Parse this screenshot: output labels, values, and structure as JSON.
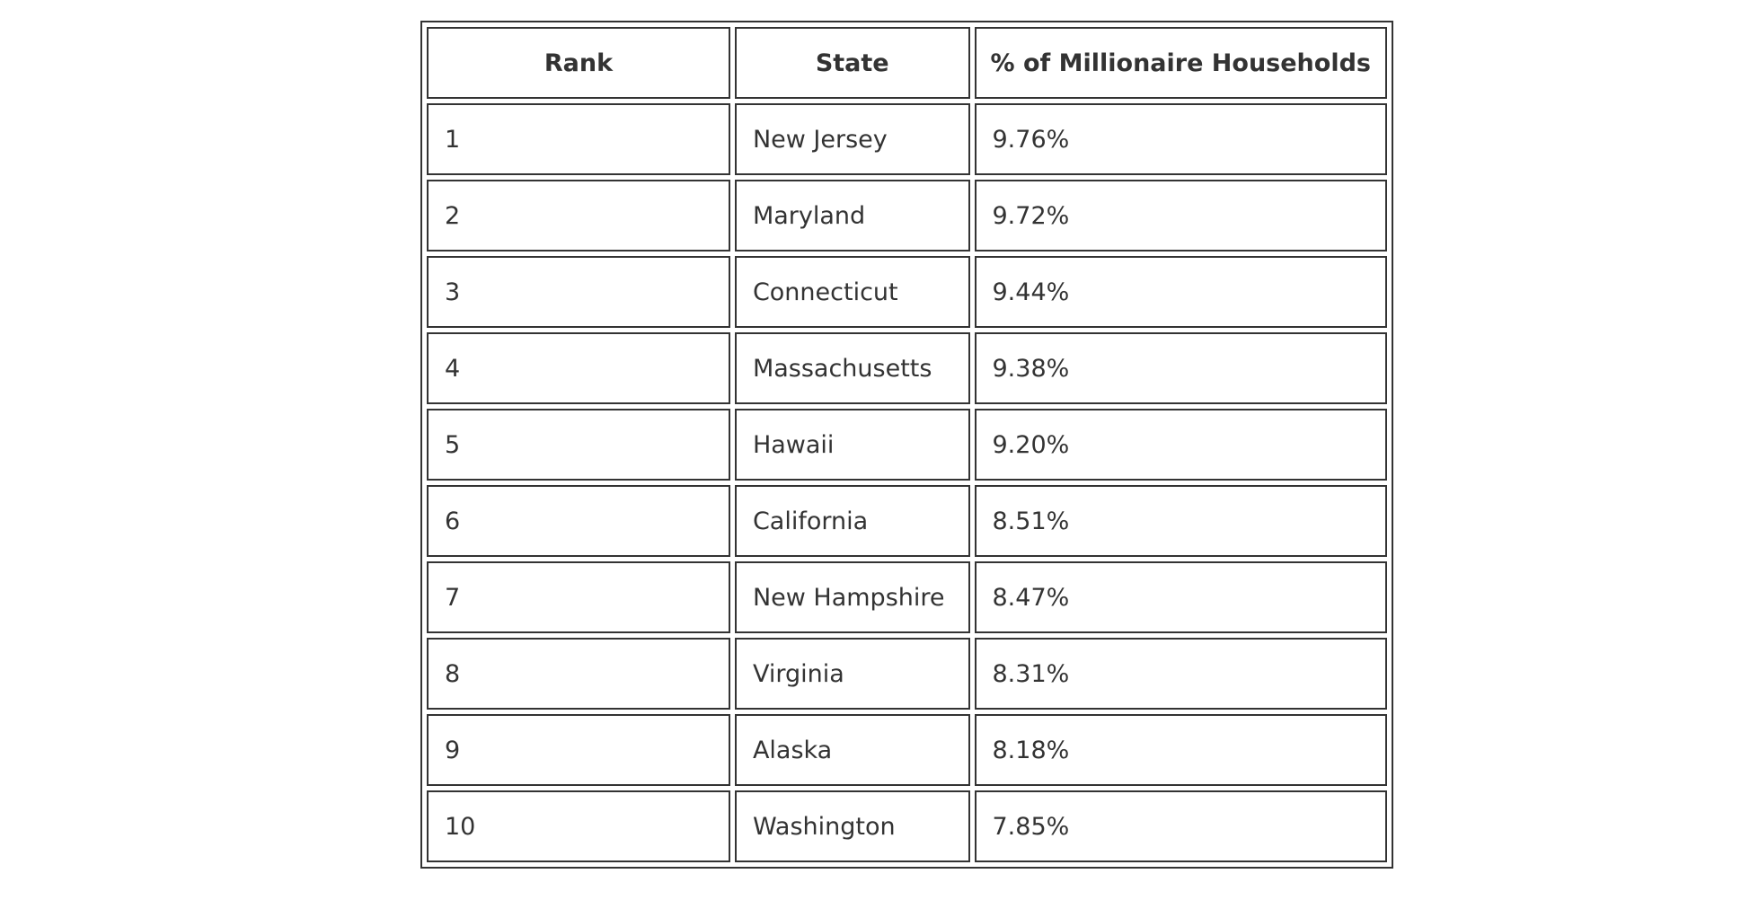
{
  "table": {
    "header": [
      "Rank",
      "State",
      "% of Millionaire Households"
    ],
    "rows": [
      [
        "1",
        "New Jersey",
        "9.76%"
      ],
      [
        "2",
        "Maryland",
        "9.72%"
      ],
      [
        "3",
        "Connecticut",
        "9.44%"
      ],
      [
        "4",
        "Massachusetts",
        "9.38%"
      ],
      [
        "5",
        "Hawaii",
        "9.20%"
      ],
      [
        "6",
        "California",
        "8.51%"
      ],
      [
        "7",
        "New Hampshire",
        "8.47%"
      ],
      [
        "8",
        "Virginia",
        "8.31%"
      ],
      [
        "9",
        "Alaska",
        "8.18%"
      ],
      [
        "10",
        "Washington",
        "7.85%"
      ]
    ]
  }
}
